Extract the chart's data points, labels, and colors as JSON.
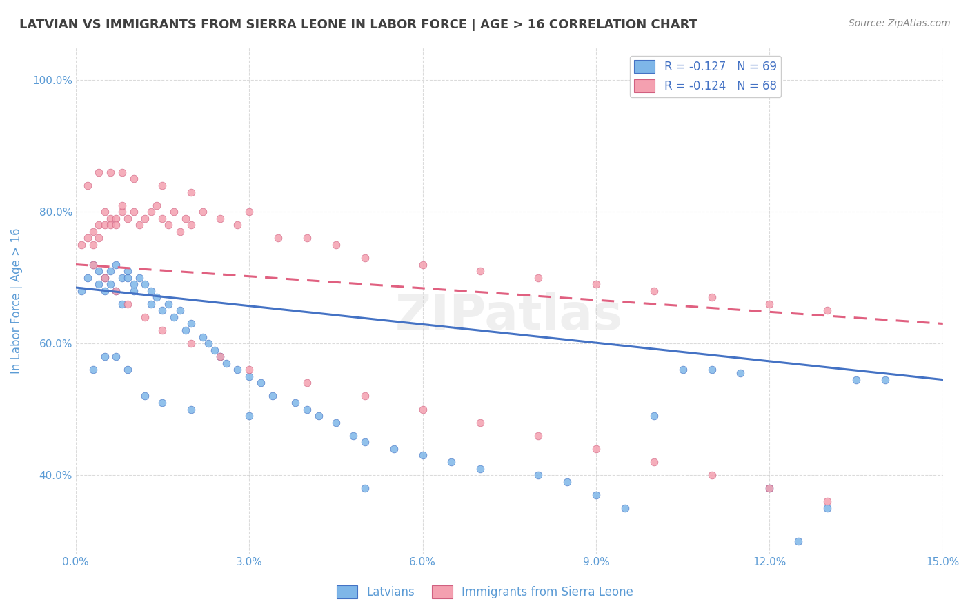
{
  "title": "LATVIAN VS IMMIGRANTS FROM SIERRA LEONE IN LABOR FORCE | AGE > 16 CORRELATION CHART",
  "source_text": "Source: ZipAtlas.com",
  "ylabel": "In Labor Force | Age > 16",
  "xmin": 0.0,
  "xmax": 0.15,
  "ymin": 0.28,
  "ymax": 1.05,
  "legend_blue_label": "R = -0.127   N = 69",
  "legend_pink_label": "R = -0.124   N = 68",
  "scatter_blue_color": "#7EB6E8",
  "scatter_pink_color": "#F4A0B0",
  "trendline_blue_color": "#4472C4",
  "trendline_pink_color": "#E06080",
  "watermark": "ZIPatlas",
  "background_color": "#FFFFFF",
  "grid_color": "#CCCCCC",
  "title_color": "#404040",
  "axis_label_color": "#5B9BD5",
  "legend_text_color": "#4472C4",
  "blue_x": [
    0.001,
    0.002,
    0.003,
    0.004,
    0.004,
    0.005,
    0.005,
    0.006,
    0.006,
    0.007,
    0.007,
    0.008,
    0.008,
    0.009,
    0.009,
    0.01,
    0.01,
    0.011,
    0.012,
    0.013,
    0.013,
    0.014,
    0.015,
    0.016,
    0.017,
    0.018,
    0.019,
    0.02,
    0.022,
    0.023,
    0.024,
    0.025,
    0.026,
    0.028,
    0.03,
    0.032,
    0.034,
    0.038,
    0.04,
    0.042,
    0.045,
    0.048,
    0.05,
    0.055,
    0.06,
    0.065,
    0.07,
    0.08,
    0.085,
    0.09,
    0.095,
    0.1,
    0.105,
    0.11,
    0.115,
    0.12,
    0.125,
    0.13,
    0.135,
    0.003,
    0.005,
    0.007,
    0.009,
    0.012,
    0.015,
    0.02,
    0.03,
    0.05,
    0.14
  ],
  "blue_y": [
    0.68,
    0.7,
    0.72,
    0.69,
    0.71,
    0.7,
    0.68,
    0.71,
    0.69,
    0.72,
    0.68,
    0.7,
    0.66,
    0.7,
    0.71,
    0.68,
    0.69,
    0.7,
    0.69,
    0.66,
    0.68,
    0.67,
    0.65,
    0.66,
    0.64,
    0.65,
    0.62,
    0.63,
    0.61,
    0.6,
    0.59,
    0.58,
    0.57,
    0.56,
    0.55,
    0.54,
    0.52,
    0.51,
    0.5,
    0.49,
    0.48,
    0.46,
    0.45,
    0.44,
    0.43,
    0.42,
    0.41,
    0.4,
    0.39,
    0.37,
    0.35,
    0.49,
    0.56,
    0.56,
    0.555,
    0.38,
    0.3,
    0.35,
    0.545,
    0.56,
    0.58,
    0.58,
    0.56,
    0.52,
    0.51,
    0.5,
    0.49,
    0.38,
    0.545
  ],
  "pink_x": [
    0.001,
    0.002,
    0.003,
    0.003,
    0.004,
    0.004,
    0.005,
    0.005,
    0.006,
    0.006,
    0.007,
    0.007,
    0.008,
    0.008,
    0.009,
    0.01,
    0.011,
    0.012,
    0.013,
    0.014,
    0.015,
    0.016,
    0.017,
    0.018,
    0.019,
    0.02,
    0.022,
    0.025,
    0.028,
    0.03,
    0.035,
    0.04,
    0.045,
    0.05,
    0.06,
    0.07,
    0.08,
    0.09,
    0.1,
    0.11,
    0.12,
    0.13,
    0.003,
    0.005,
    0.007,
    0.009,
    0.012,
    0.015,
    0.02,
    0.025,
    0.03,
    0.04,
    0.05,
    0.06,
    0.07,
    0.08,
    0.09,
    0.1,
    0.11,
    0.12,
    0.13,
    0.002,
    0.004,
    0.006,
    0.008,
    0.01,
    0.015,
    0.02
  ],
  "pink_y": [
    0.75,
    0.76,
    0.77,
    0.75,
    0.78,
    0.76,
    0.78,
    0.8,
    0.79,
    0.78,
    0.79,
    0.78,
    0.8,
    0.81,
    0.79,
    0.8,
    0.78,
    0.79,
    0.8,
    0.81,
    0.79,
    0.78,
    0.8,
    0.77,
    0.79,
    0.78,
    0.8,
    0.79,
    0.78,
    0.8,
    0.76,
    0.76,
    0.75,
    0.73,
    0.72,
    0.71,
    0.7,
    0.69,
    0.68,
    0.67,
    0.66,
    0.65,
    0.72,
    0.7,
    0.68,
    0.66,
    0.64,
    0.62,
    0.6,
    0.58,
    0.56,
    0.54,
    0.52,
    0.5,
    0.48,
    0.46,
    0.44,
    0.42,
    0.4,
    0.38,
    0.36,
    0.84,
    0.86,
    0.86,
    0.86,
    0.85,
    0.84,
    0.83
  ],
  "blue_trend_x": [
    0.0,
    0.15
  ],
  "blue_trend_y": [
    0.685,
    0.545
  ],
  "pink_trend_x": [
    0.0,
    0.15
  ],
  "pink_trend_y": [
    0.72,
    0.63
  ],
  "xtick_vals": [
    0.0,
    0.03,
    0.06,
    0.09,
    0.12,
    0.15
  ],
  "ytick_vals": [
    0.4,
    0.6,
    0.8,
    1.0
  ]
}
